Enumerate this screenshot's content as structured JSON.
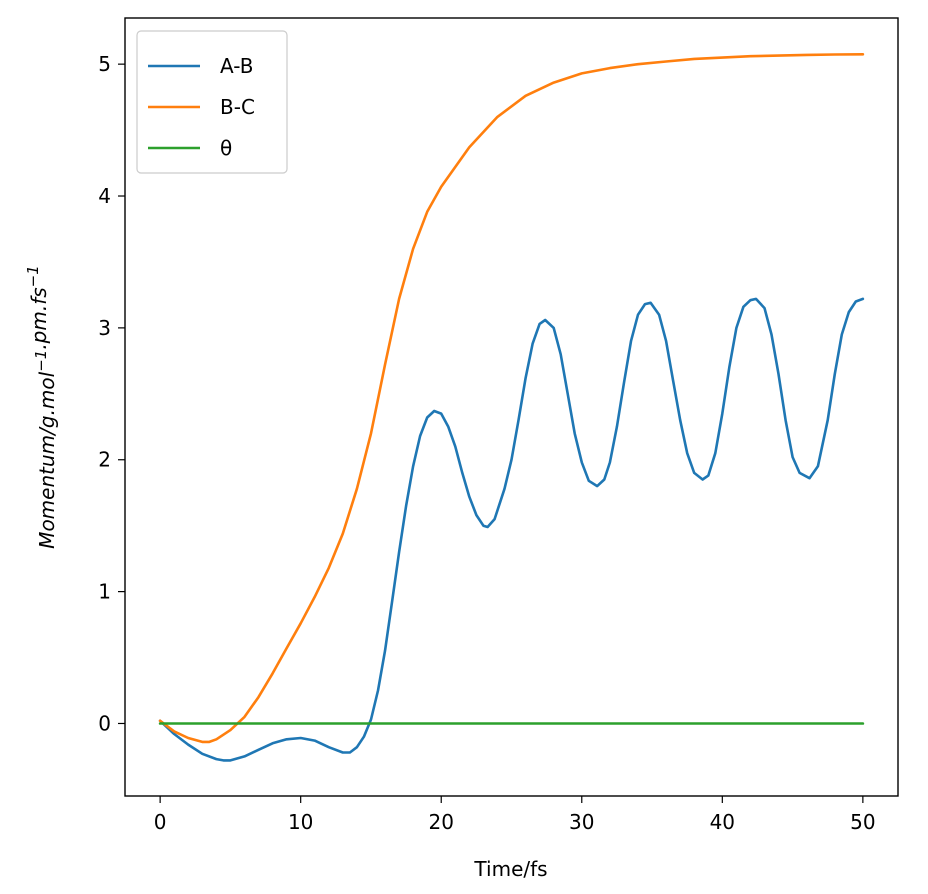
{
  "chart_data": {
    "type": "line",
    "xlabel": "Time/fs",
    "ylabel": "Momentum/g.mol⁻¹.pm.fs⁻¹",
    "xlim": [
      -2.5,
      52.5
    ],
    "ylim": [
      -0.55,
      5.35
    ],
    "xticks": [
      0,
      10,
      20,
      30,
      40,
      50
    ],
    "yticks": [
      0,
      1,
      2,
      3,
      4,
      5
    ],
    "grid": false,
    "legend_position": "top-left",
    "series": [
      {
        "name": "A-B",
        "color": "#1f77b4",
        "x": [
          0,
          1,
          2,
          3,
          4,
          4.5,
          5,
          6,
          7,
          8,
          9,
          10,
          11,
          12,
          13,
          13.5,
          14,
          14.5,
          15,
          15.5,
          16,
          16.5,
          17,
          17.5,
          18,
          18.5,
          19,
          19.5,
          20,
          20.5,
          21,
          21.5,
          22,
          22.5,
          23,
          23.3,
          23.8,
          24.5,
          25,
          25.5,
          26,
          26.5,
          27,
          27.4,
          28,
          28.5,
          29,
          29.5,
          30,
          30.5,
          31.1,
          31.6,
          32,
          32.5,
          33,
          33.5,
          34,
          34.5,
          34.9,
          35.5,
          36,
          36.5,
          37,
          37.5,
          38,
          38.6,
          39,
          39.5,
          40,
          40.5,
          41,
          41.5,
          42,
          42.4,
          43,
          43.5,
          44,
          44.5,
          45,
          45.5,
          46.2,
          46.8,
          47.5,
          48,
          48.5,
          49,
          49.5,
          50
        ],
        "y": [
          0.02,
          -0.08,
          -0.16,
          -0.23,
          -0.27,
          -0.28,
          -0.28,
          -0.25,
          -0.2,
          -0.15,
          -0.12,
          -0.11,
          -0.13,
          -0.18,
          -0.22,
          -0.22,
          -0.18,
          -0.1,
          0.03,
          0.25,
          0.55,
          0.92,
          1.3,
          1.65,
          1.95,
          2.18,
          2.32,
          2.37,
          2.35,
          2.25,
          2.1,
          1.9,
          1.72,
          1.58,
          1.5,
          1.49,
          1.55,
          1.78,
          2.0,
          2.3,
          2.62,
          2.88,
          3.03,
          3.06,
          3.0,
          2.8,
          2.5,
          2.2,
          1.98,
          1.84,
          1.8,
          1.85,
          1.98,
          2.25,
          2.58,
          2.9,
          3.1,
          3.18,
          3.19,
          3.1,
          2.9,
          2.6,
          2.3,
          2.05,
          1.9,
          1.85,
          1.88,
          2.05,
          2.35,
          2.7,
          3.0,
          3.16,
          3.21,
          3.22,
          3.15,
          2.95,
          2.65,
          2.3,
          2.02,
          1.9,
          1.86,
          1.95,
          2.3,
          2.65,
          2.95,
          3.12,
          3.2,
          3.22
        ]
      },
      {
        "name": "B-C",
        "color": "#ff7f0e",
        "x": [
          0,
          1,
          2,
          3,
          3.5,
          4,
          5,
          6,
          7,
          8,
          9,
          10,
          11,
          12,
          13,
          14,
          15,
          16,
          17,
          18,
          19,
          20,
          22,
          24,
          26,
          28,
          30,
          32,
          34,
          36,
          38,
          40,
          42,
          44,
          46,
          48,
          50
        ],
        "y": [
          0.02,
          -0.06,
          -0.11,
          -0.14,
          -0.14,
          -0.12,
          -0.05,
          0.05,
          0.2,
          0.38,
          0.57,
          0.76,
          0.96,
          1.18,
          1.44,
          1.78,
          2.2,
          2.72,
          3.22,
          3.6,
          3.88,
          4.07,
          4.37,
          4.6,
          4.76,
          4.86,
          4.93,
          4.97,
          5.0,
          5.02,
          5.04,
          5.05,
          5.06,
          5.065,
          5.07,
          5.073,
          5.075
        ]
      },
      {
        "name": "θ",
        "color": "#2ca02c",
        "x": [
          0,
          50
        ],
        "y": [
          0,
          0
        ]
      }
    ]
  }
}
